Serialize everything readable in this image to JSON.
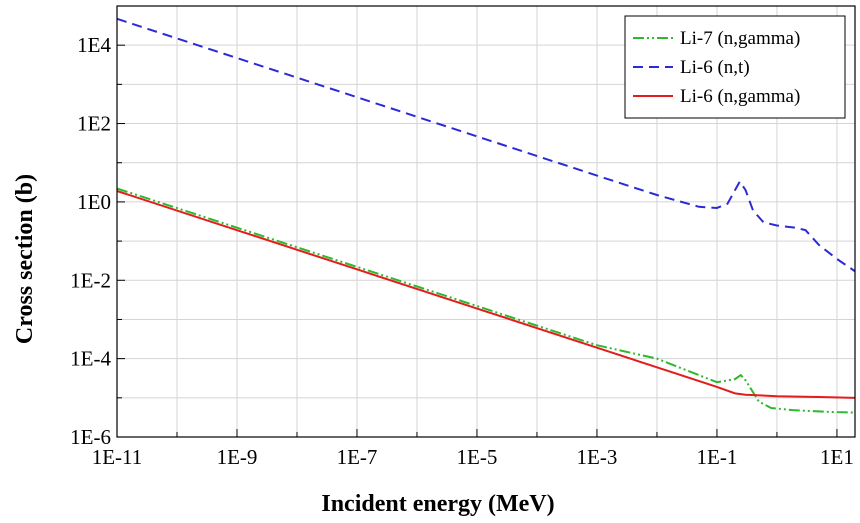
{
  "chart_data": {
    "type": "line",
    "title": "",
    "xlabel": "Incident energy (MeV)",
    "ylabel": "Cross section (b)",
    "x_scale": "log",
    "y_scale": "log",
    "xlim": [
      1e-11,
      20
    ],
    "ylim": [
      1e-06,
      100000
    ],
    "x_ticks": [
      {
        "value": 1e-11,
        "label": "1E-11"
      },
      {
        "value": 1e-09,
        "label": "1E-9"
      },
      {
        "value": 1e-07,
        "label": "1E-7"
      },
      {
        "value": 1e-05,
        "label": "1E-5"
      },
      {
        "value": 0.001,
        "label": "1E-3"
      },
      {
        "value": 0.1,
        "label": "1E-1"
      },
      {
        "value": 10,
        "label": "1E1"
      }
    ],
    "y_ticks": [
      {
        "value": 1e-06,
        "label": "1E-6"
      },
      {
        "value": 0.0001,
        "label": "1E-4"
      },
      {
        "value": 0.01,
        "label": "1E-2"
      },
      {
        "value": 1,
        "label": "1E0"
      },
      {
        "value": 100,
        "label": "1E2"
      },
      {
        "value": 10000,
        "label": "1E4"
      }
    ],
    "grid": true,
    "legend_position": "top-right",
    "series": [
      {
        "name": "Li-7 (n,gamma)",
        "color": "#2db82d",
        "dash": "dash-dot-dot",
        "points": [
          [
            1e-11,
            2.2
          ],
          [
            1e-09,
            0.22
          ],
          [
            1e-07,
            0.022
          ],
          [
            1e-05,
            0.0022
          ],
          [
            0.001,
            0.00022
          ],
          [
            0.01,
            0.0001
          ],
          [
            0.1,
            2.5e-05
          ],
          [
            0.2,
            3e-05
          ],
          [
            0.25,
            3.8e-05
          ],
          [
            0.3,
            2.8e-05
          ],
          [
            0.5,
            8e-06
          ],
          [
            0.8,
            5.5e-06
          ],
          [
            2,
            4.8e-06
          ],
          [
            10,
            4.3e-06
          ],
          [
            20,
            4.2e-06
          ]
        ]
      },
      {
        "name": "Li-6 (n,t)",
        "color": "#2b2bd6",
        "dash": "dashed",
        "points": [
          [
            1e-11,
            47000
          ],
          [
            1e-09,
            4700
          ],
          [
            1e-07,
            470
          ],
          [
            1e-05,
            47
          ],
          [
            0.001,
            4.7
          ],
          [
            0.01,
            1.5
          ],
          [
            0.05,
            0.75
          ],
          [
            0.1,
            0.7
          ],
          [
            0.15,
            0.9
          ],
          [
            0.2,
            2
          ],
          [
            0.24,
            3.3
          ],
          [
            0.3,
            2
          ],
          [
            0.4,
            0.6
          ],
          [
            0.6,
            0.3
          ],
          [
            1,
            0.25
          ],
          [
            2,
            0.22
          ],
          [
            3,
            0.19
          ],
          [
            5,
            0.08
          ],
          [
            10,
            0.035
          ],
          [
            20,
            0.017
          ]
        ]
      },
      {
        "name": "Li-6 (n,gamma)",
        "color": "#e31c1c",
        "dash": "solid",
        "points": [
          [
            1e-11,
            1.9
          ],
          [
            1e-09,
            0.19
          ],
          [
            1e-07,
            0.019
          ],
          [
            1e-05,
            0.0019
          ],
          [
            0.001,
            0.00019
          ],
          [
            0.01,
            6e-05
          ],
          [
            0.1,
            1.9e-05
          ],
          [
            0.2,
            1.3e-05
          ],
          [
            0.3,
            1.2e-05
          ],
          [
            1,
            1.1e-05
          ],
          [
            5,
            1.05e-05
          ],
          [
            20,
            1e-05
          ]
        ]
      }
    ]
  }
}
